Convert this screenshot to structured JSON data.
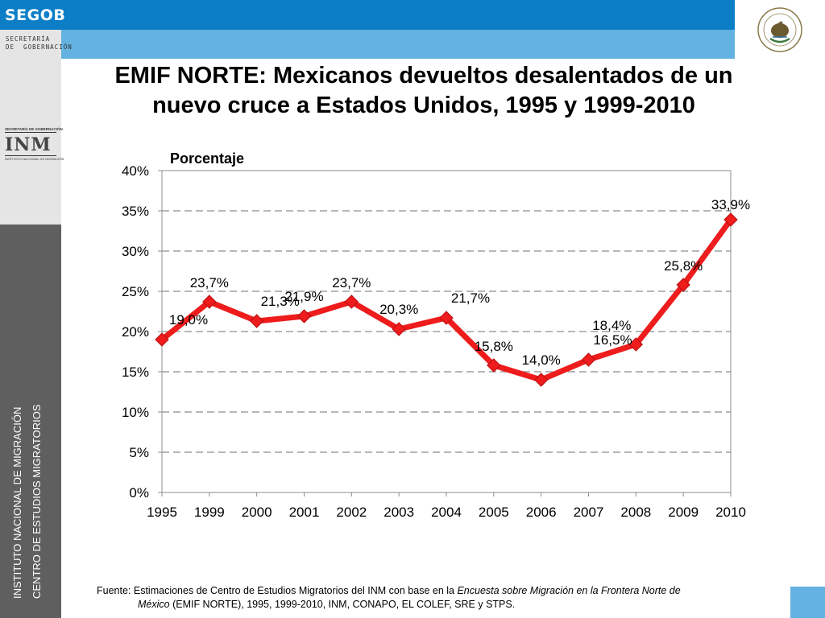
{
  "header": {
    "logo_text": "SEGOB",
    "ministry_line1": "SECRETARÍA",
    "ministry_line2": "DE  GOBERNACIÓN"
  },
  "inm_logo": {
    "top_text": "SECRETARÍA DE GOBERNACIÓN",
    "mark": "INM",
    "bottom_text": "INSTITUTO NACIONAL DE MIGRACIÓN"
  },
  "sidebar": {
    "line1": "INSTITUTO NACIONAL DE MIGRACIÓN",
    "line2": "CENTRO DE ESTUDIOS MIGRATORIOS"
  },
  "seal": {
    "text": "ESTADOS UNIDOS MEXICANOS"
  },
  "title": {
    "line1": "EMIF NORTE: Mexicanos devueltos desalentados de un",
    "line2": "nuevo cruce a Estados Unidos, 1995 y 1999-2010"
  },
  "chart_data": {
    "type": "line",
    "ylabel": "Porcentaje",
    "categories": [
      "1995",
      "1999",
      "2000",
      "2001",
      "2002",
      "2003",
      "2004",
      "2005",
      "2006",
      "2007",
      "2008",
      "2009",
      "2010"
    ],
    "values": [
      19.0,
      23.7,
      21.3,
      21.9,
      23.7,
      20.3,
      21.7,
      15.8,
      14.0,
      16.5,
      18.4,
      25.8,
      33.9
    ],
    "data_labels": [
      "19,0%",
      "23,7%",
      "21,3%",
      "21,9%",
      "23,7%",
      "20,3%",
      "21,7%",
      "15,8%",
      "14,0%",
      "16,5%",
      "18,4%",
      "25,8%",
      "33,9%"
    ],
    "yticks": [
      0,
      5,
      10,
      15,
      20,
      25,
      30,
      35,
      40
    ],
    "ytick_labels": [
      "0%",
      "5%",
      "10%",
      "15%",
      "20%",
      "25%",
      "30%",
      "35%",
      "40%"
    ],
    "ylim": [
      0,
      40
    ],
    "series_color": "#ee1c1c",
    "grid": true
  },
  "footnote": {
    "prefix": "Fuente: Estimaciones de Centro de Estudios Migratorios del INM con base en la ",
    "italic1": "Encuesta sobre Migración en la Frontera Norte de",
    "italic2": "México",
    "suffix": " (EMIF NORTE), 1995, 1999-2010, INM, CONAPO, EL COLEF, SRE y STPS."
  },
  "colors": {
    "dark_blue": "#0b7ec6",
    "light_blue": "#64b2e1",
    "sidebar_gray": "#5f5f5f"
  }
}
